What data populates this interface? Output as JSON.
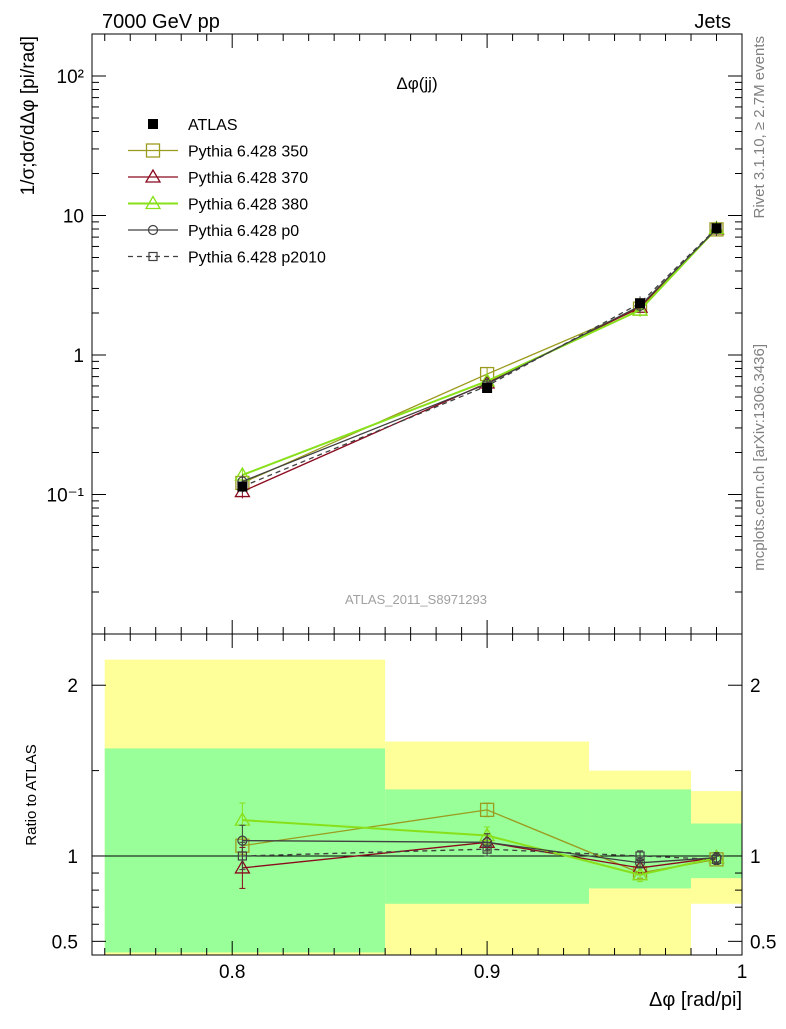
{
  "header": {
    "left": "7000 GeV pp",
    "right": "Jets"
  },
  "side_labels": {
    "rivet": "Rivet 3.1.10, ≥ 2.7M events",
    "mcplots": "mcplots.cern.ch [arXiv:1306.3436]"
  },
  "chart_data": [
    {
      "type": "line",
      "panel": "main",
      "title": "Δφ(jj)",
      "ylabel": "1/σ;dσ/dΔφ [pi/rad]",
      "yscale": "log",
      "ylim": [
        0.01,
        200
      ],
      "xlim": [
        0.745,
        1.0
      ],
      "y_ticks": [
        {
          "value": 0.1,
          "label": "10⁻¹"
        },
        {
          "value": 1,
          "label": "1"
        },
        {
          "value": 10,
          "label": "10"
        },
        {
          "value": 100,
          "label": "10²"
        }
      ],
      "watermark": "ATLAS_2011_S8971293",
      "legend_position": "top-left",
      "x": [
        0.804,
        0.9,
        0.96,
        0.99
      ],
      "data": {
        "name": "ATLAS",
        "color": "#000000",
        "marker": "filled-square",
        "values": [
          0.114,
          0.58,
          2.35,
          8.1
        ]
      },
      "series": [
        {
          "name": "Pythia 6.428 350",
          "color": "#9b9b1f",
          "marker": "open-square",
          "dash": false,
          "values": [
            0.121,
            0.73,
            2.15,
            7.95
          ]
        },
        {
          "name": "Pythia 6.428 370",
          "color": "#8b0a1e",
          "marker": "open-triangle",
          "dash": false,
          "values": [
            0.105,
            0.63,
            2.2,
            8.0
          ]
        },
        {
          "name": "Pythia 6.428 380",
          "color": "#88e01a",
          "marker": "open-triangle",
          "dash": false,
          "values": [
            0.138,
            0.65,
            2.1,
            8.05
          ]
        },
        {
          "name": "Pythia 6.428 p0",
          "color": "#404040",
          "marker": "open-circle",
          "dash": false,
          "values": [
            0.124,
            0.62,
            2.25,
            8.0
          ]
        },
        {
          "name": "Pythia 6.428 p2010",
          "color": "#404040",
          "marker": "open-square-small",
          "dash": true,
          "values": [
            0.114,
            0.6,
            2.35,
            8.1
          ]
        }
      ]
    },
    {
      "type": "line",
      "panel": "ratio",
      "ylabel": "Ratio to ATLAS",
      "xlabel": "Δφ [rad/pi]",
      "ylim": [
        0.42,
        2.3
      ],
      "xlim": [
        0.745,
        1.0
      ],
      "y_ticks": [
        {
          "value": 0.5,
          "label": "0.5"
        },
        {
          "value": 1,
          "label": "1"
        },
        {
          "value": 2,
          "label": "2"
        }
      ],
      "x_ticks": [
        {
          "value": 0.8,
          "label": "0.8"
        },
        {
          "value": 0.9,
          "label": "0.9"
        },
        {
          "value": 1.0,
          "label": "1"
        }
      ],
      "bands": [
        {
          "x0": 0.75,
          "x1": 0.86,
          "yellow": [
            0.42,
            2.15
          ],
          "green": [
            0.435,
            1.63
          ]
        },
        {
          "x0": 0.86,
          "x1": 0.94,
          "yellow": [
            0.42,
            1.67
          ],
          "green": [
            0.72,
            1.39
          ]
        },
        {
          "x0": 0.94,
          "x1": 0.98,
          "yellow": [
            0.42,
            1.5
          ],
          "green": [
            0.81,
            1.39
          ]
        },
        {
          "x0": 0.98,
          "x1": 1.0,
          "yellow": [
            0.72,
            1.38
          ],
          "green": [
            0.87,
            1.19
          ]
        }
      ],
      "x": [
        0.804,
        0.9,
        0.96,
        0.99
      ],
      "series": [
        {
          "name": "Pythia 6.428 350",
          "color": "#9b9b1f",
          "marker": "open-square",
          "dash": false,
          "values": [
            1.06,
            1.27,
            0.9,
            0.98
          ],
          "err": [
            0.05,
            0.04,
            0.03,
            0.03
          ]
        },
        {
          "name": "Pythia 6.428 370",
          "color": "#8b0a1e",
          "marker": "open-triangle",
          "dash": false,
          "values": [
            0.93,
            1.08,
            0.93,
            0.99
          ],
          "err": [
            0.12,
            0.05,
            0.04,
            0.03
          ]
        },
        {
          "name": "Pythia 6.428 380",
          "color": "#88e01a",
          "marker": "open-triangle",
          "dash": false,
          "values": [
            1.21,
            1.12,
            0.89,
            0.99
          ],
          "err": [
            0.1,
            0.05,
            0.04,
            0.03
          ]
        },
        {
          "name": "Pythia 6.428 p0",
          "color": "#404040",
          "marker": "open-circle",
          "dash": false,
          "values": [
            1.09,
            1.08,
            0.96,
            0.99
          ],
          "err": [
            0.09,
            0.05,
            0.03,
            0.03
          ]
        },
        {
          "name": "Pythia 6.428 p2010",
          "color": "#404040",
          "marker": "open-square-small",
          "dash": true,
          "values": [
            1.0,
            1.04,
            1.0,
            0.98
          ],
          "err": [
            0.08,
            0.04,
            0.03,
            0.03
          ]
        }
      ]
    }
  ]
}
